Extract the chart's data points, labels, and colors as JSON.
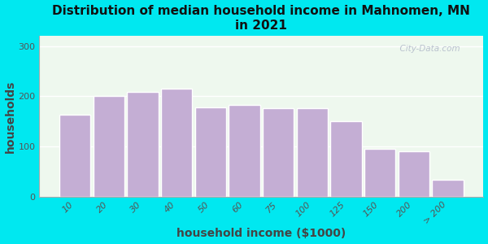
{
  "title": "Distribution of median household income in Mahnomen, MN\nin 2021",
  "xlabel": "household income ($1000)",
  "ylabel": "households",
  "categories": [
    "10",
    "20",
    "30",
    "40",
    "50",
    "60",
    "75",
    "100",
    "125",
    "150",
    "200",
    "> 200"
  ],
  "values": [
    163,
    200,
    208,
    215,
    178,
    183,
    177,
    177,
    150,
    95,
    90,
    33
  ],
  "bar_color": "#c4aed4",
  "bar_edgecolor": "#ffffff",
  "ylim": [
    0,
    320
  ],
  "yticks": [
    0,
    100,
    200,
    300
  ],
  "background_outer": "#00e8f0",
  "background_inner": "#e8f5ea",
  "watermark": "  City-Data.com",
  "title_fontsize": 11,
  "axis_label_fontsize": 10,
  "tick_fontsize": 8
}
